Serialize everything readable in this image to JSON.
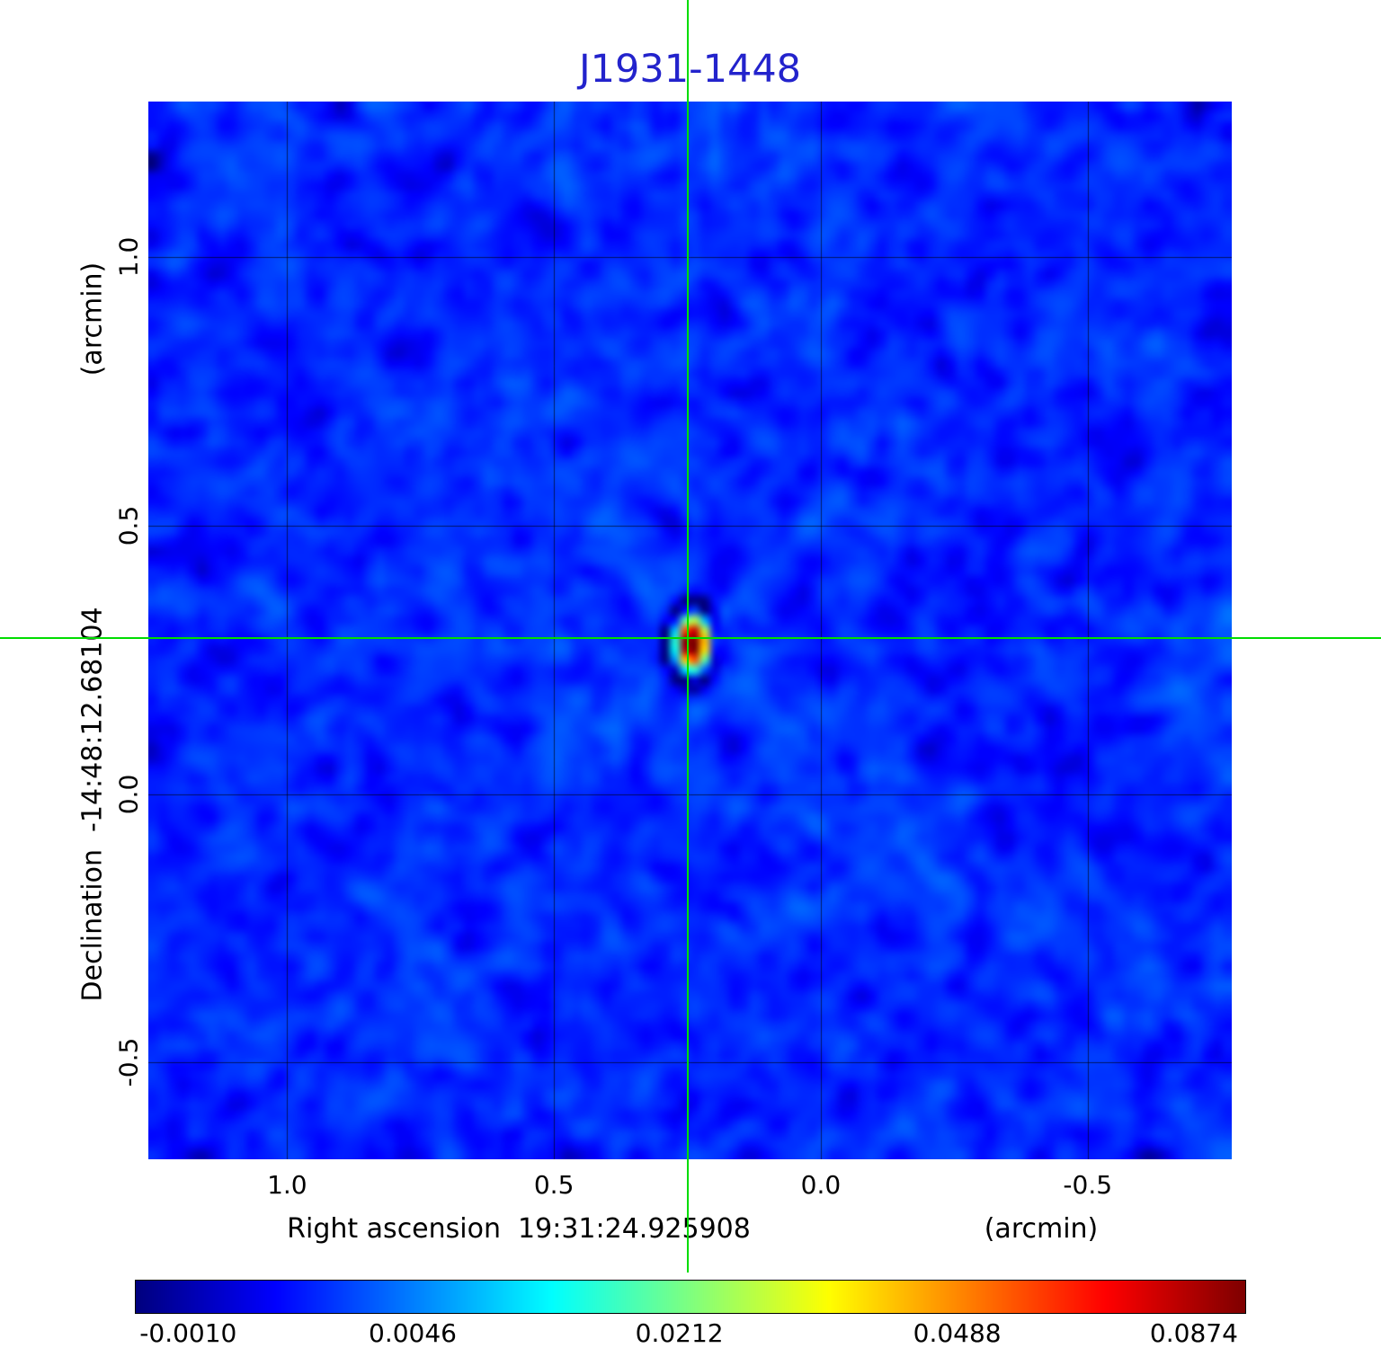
{
  "chart_data": {
    "type": "heatmap",
    "title": "J1931-1448",
    "title_color": "#2323cc",
    "xlabel": "Right ascension  19:31:24.925908",
    "xunit": "(arcmin)",
    "ylabel": "Declination  -14:48:12.68104",
    "yunit": "(arcmin)",
    "x_ticks": [
      1.0,
      0.5,
      0.0,
      -0.5
    ],
    "x_tick_labels": [
      "1.0",
      "0.5",
      "0.0",
      "-0.5"
    ],
    "y_ticks": [
      1.0,
      0.5,
      0.0,
      -0.5
    ],
    "y_tick_labels": [
      "1.0",
      "0.5",
      "0.0",
      "-0.5"
    ],
    "x_range": [
      1.26,
      -0.77
    ],
    "y_range": [
      -0.68,
      1.29
    ],
    "grid": true,
    "grid_color": "rgba(0,0,0,0.6)",
    "colormap": "jet",
    "color_scale": "sqrt",
    "value_range": [
      -0.001,
      0.0874
    ],
    "colorbar_values": [
      -0.001,
      0.0046,
      0.0212,
      0.0488,
      0.0874
    ],
    "colorbar_tick_labels": [
      "-0.0010",
      "0.0046",
      "0.0212",
      "0.0488",
      "0.0874"
    ],
    "crosshair": {
      "x": 0.25,
      "y": 0.29,
      "color": "#00dd00"
    },
    "source": {
      "x": 0.25,
      "y": 0.29,
      "peak": 0.0874,
      "description": "compact point source at crosshair center with jet-colormap noise background"
    }
  }
}
